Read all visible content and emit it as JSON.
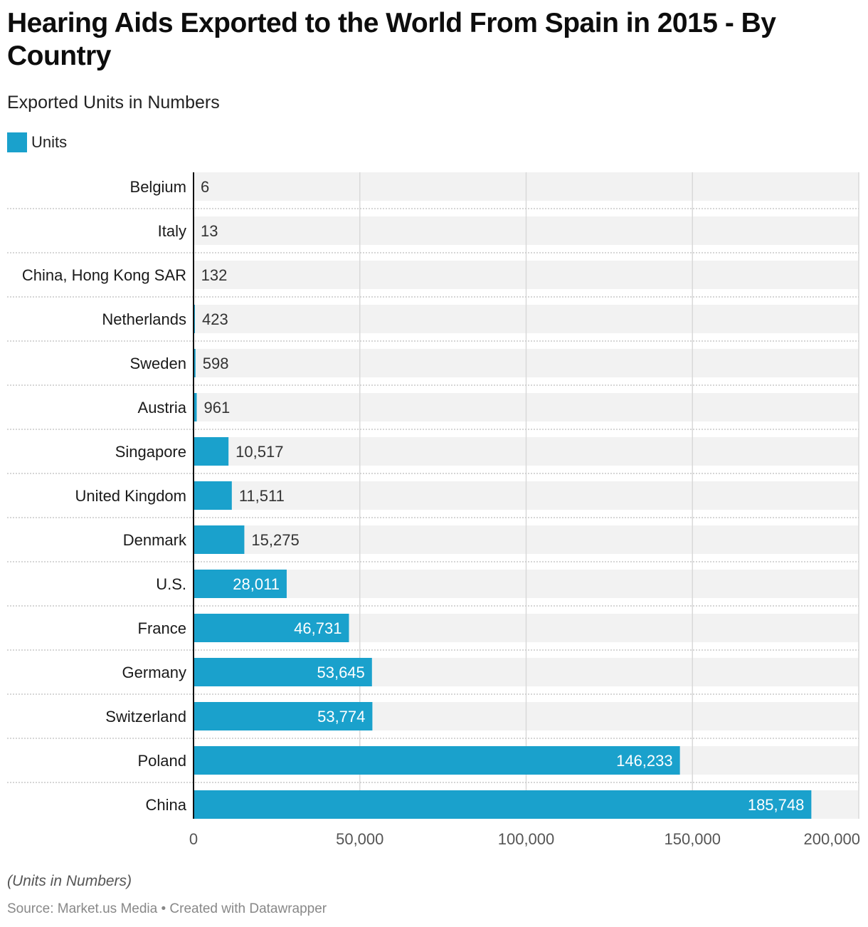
{
  "header": {
    "title": "Hearing Aids Exported to the World From Spain in 2015 - By Country",
    "subtitle": "Exported Units in Numbers"
  },
  "legend": {
    "label": "Units",
    "color": "#1aa1cc"
  },
  "footer": {
    "notes": "(Units in Numbers)",
    "source": "Source: Market.us Media • Created with Datawrapper"
  },
  "chart_data": {
    "type": "bar",
    "orientation": "horizontal",
    "title": "Hearing Aids Exported to the World From Spain in 2015 - By Country",
    "subtitle": "Exported Units in Numbers",
    "xlabel": "",
    "ylabel": "",
    "categories": [
      "Belgium",
      "Italy",
      "China, Hong Kong SAR",
      "Netherlands",
      "Sweden",
      "Austria",
      "Singapore",
      "United Kingdom",
      "Denmark",
      "U.S.",
      "France",
      "Germany",
      "Switzerland",
      "Poland",
      "China"
    ],
    "series": [
      {
        "name": "Units",
        "color": "#1aa1cc",
        "values": [
          6,
          13,
          132,
          423,
          598,
          961,
          10517,
          11511,
          15275,
          28011,
          46731,
          53645,
          53774,
          146233,
          185748
        ],
        "labels": [
          "6",
          "13",
          "132",
          "423",
          "598",
          "961",
          "10,517",
          "11,511",
          "15,275",
          "28,011",
          "46,731",
          "53,645",
          "53,774",
          "146,233",
          "185,748"
        ]
      }
    ],
    "xlim": [
      0,
      200000
    ],
    "xticks": [
      0,
      50000,
      100000,
      150000,
      200000
    ],
    "xtick_labels": [
      "0",
      "50,000",
      "100,000",
      "150,000",
      "200,000"
    ],
    "grid": true,
    "legend_position": "top-left",
    "colors": {
      "bar": "#1aa1cc",
      "track": "#f2f2f2",
      "grid": "#d9d9d9",
      "axis": "#111111"
    }
  }
}
